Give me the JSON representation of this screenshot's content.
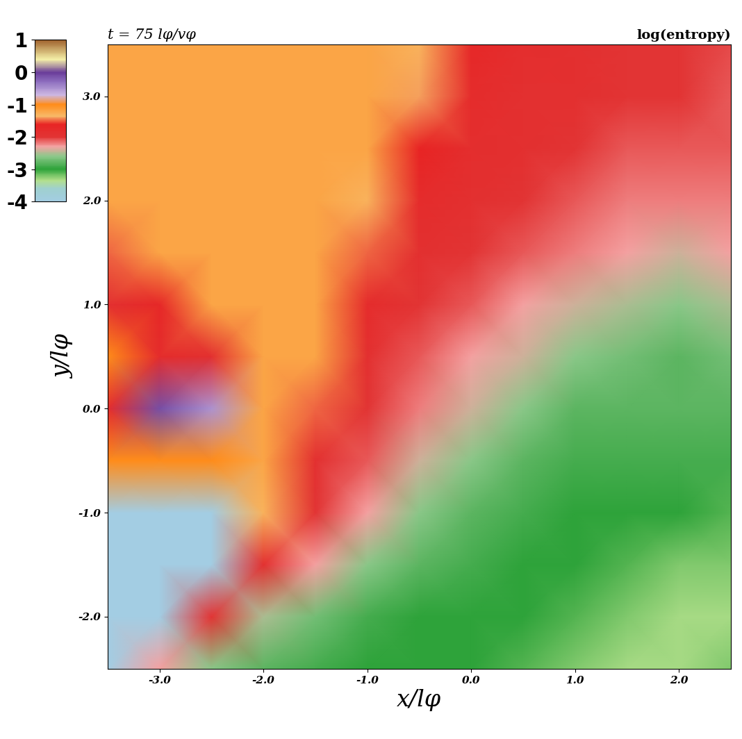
{
  "chart_data": {
    "type": "heatmap",
    "title": "log(entropy)",
    "subtitle": "t = 75 lφ/vφ",
    "x_label": "x/lφ",
    "y_label": "y/lφ",
    "xlim": [
      -3.5,
      2.5
    ],
    "ylim": [
      -2.5,
      3.5
    ],
    "xticks": [
      -3.0,
      -2.0,
      -1.0,
      0.0,
      1.0,
      2.0
    ],
    "yticks": [
      -2.0,
      -1.0,
      0.0,
      1.0,
      2.0,
      3.0
    ],
    "x": [
      -3.5,
      -3.0,
      -2.5,
      -2.0,
      -1.5,
      -1.0,
      -0.5,
      0.0,
      0.5,
      1.0,
      1.5,
      2.0,
      2.5
    ],
    "y": [
      -2.5,
      -2.0,
      -1.5,
      -1.0,
      -0.5,
      0.0,
      0.5,
      1.0,
      1.5,
      2.0,
      2.5,
      3.0,
      3.5
    ],
    "cells": [
      [
        -4.0,
        -2.3,
        -2.6,
        -2.8,
        -2.9,
        -3.0,
        -3.0,
        -3.0,
        -3.1,
        -3.2,
        -3.3,
        -3.3,
        -3.2
      ],
      [
        -4.0,
        -4.0,
        -2.0,
        -2.5,
        -2.7,
        -2.9,
        -3.0,
        -3.0,
        -3.0,
        -3.1,
        -3.2,
        -3.3,
        -3.3
      ],
      [
        -4.0,
        -4.0,
        -4.0,
        -1.9,
        -2.3,
        -2.6,
        -2.8,
        -2.9,
        -3.0,
        -3.0,
        -3.1,
        -3.2,
        -3.2
      ],
      [
        -4.0,
        -4.0,
        -4.0,
        -1.3,
        -2.0,
        -2.3,
        -2.6,
        -2.8,
        -2.9,
        -3.0,
        -3.0,
        -3.0,
        -3.1
      ],
      [
        -1.0,
        -1.0,
        -1.0,
        -1.2,
        -1.9,
        -2.1,
        -2.4,
        -2.6,
        -2.8,
        -2.9,
        -2.9,
        -2.9,
        -2.9
      ],
      [
        -1.8,
        -0.1,
        -0.5,
        -1.2,
        -1.5,
        -2.0,
        -2.2,
        -2.4,
        -2.6,
        -2.8,
        -2.8,
        -2.8,
        -2.8
      ],
      [
        -1.0,
        -1.8,
        -1.9,
        -1.2,
        -1.2,
        -1.9,
        -2.1,
        -2.3,
        -2.4,
        -2.6,
        -2.7,
        -2.8,
        -2.7
      ],
      [
        -1.9,
        -1.7,
        -1.2,
        -1.2,
        -1.2,
        -1.8,
        -2.0,
        -2.1,
        -2.3,
        -2.4,
        -2.5,
        -2.6,
        -2.5
      ],
      [
        -1.5,
        -1.2,
        -1.2,
        -1.2,
        -1.2,
        -1.5,
        -1.9,
        -2.0,
        -2.1,
        -2.2,
        -2.3,
        -2.4,
        -2.3
      ],
      [
        -1.2,
        -1.2,
        -1.2,
        -1.2,
        -1.2,
        -1.3,
        -1.8,
        -1.9,
        -2.0,
        -2.1,
        -2.2,
        -2.2,
        -2.2
      ],
      [
        -1.2,
        -1.2,
        -1.2,
        -1.2,
        -1.2,
        -1.2,
        -1.6,
        -1.85,
        -1.9,
        -2.0,
        -2.1,
        -2.1,
        -2.1
      ],
      [
        -1.2,
        -1.2,
        -1.2,
        -1.2,
        -1.2,
        -1.2,
        -1.4,
        -1.8,
        -1.9,
        -1.9,
        -2.0,
        -2.0,
        -2.1
      ],
      [
        -1.2,
        -1.2,
        -1.2,
        -1.2,
        -1.2,
        -1.2,
        -1.3,
        -1.7,
        -1.85,
        -1.9,
        -2.0,
        -2.0,
        -2.05
      ]
    ],
    "colorbar": {
      "range": [
        -4,
        1
      ],
      "ticks": [
        -4,
        -3,
        -2,
        -1,
        0,
        1
      ]
    }
  }
}
